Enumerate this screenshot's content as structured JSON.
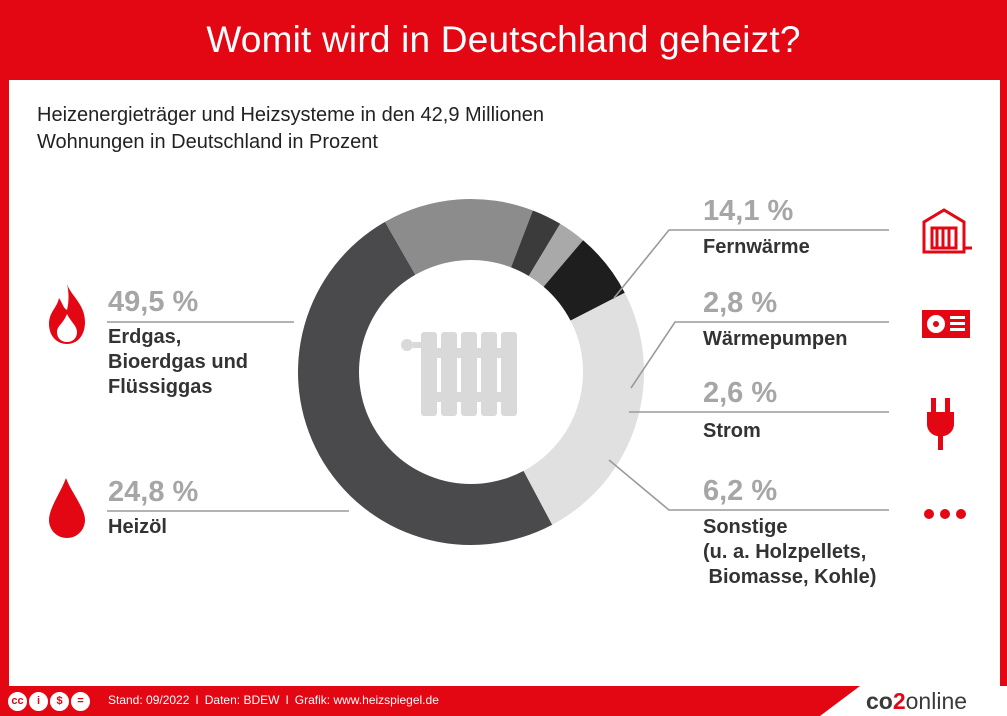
{
  "title": "Womit wird in Deutschland geheizt?",
  "subtitle": [
    "Heizenergieträger und Heizsysteme in den 42,9 Millionen",
    "Wohnungen in Deutschland in Prozent"
  ],
  "chart_data": {
    "type": "pie",
    "variant": "donut",
    "title": "Womit wird in Deutschland geheizt?",
    "subtitle": "Heizenergieträger und Heizsysteme in den 42,9 Millionen Wohnungen in Deutschland in Prozent",
    "unit": "%",
    "slices": [
      {
        "key": "erdgas",
        "value": 49.5,
        "label_value": "49,5 %",
        "lines": [
          "Erdgas,",
          "Bioerdgas und",
          "Flüssiggas"
        ],
        "color": "#4a4a4c",
        "icon": "flame-icon"
      },
      {
        "key": "fernwaerme",
        "value": 14.1,
        "label_value": "14,1 %",
        "lines": [
          "Fernwärme"
        ],
        "color": "#8c8c8c",
        "icon": "district-heating-icon"
      },
      {
        "key": "waermepumpen",
        "value": 2.8,
        "label_value": "2,8 %",
        "lines": [
          "Wärmepumpen"
        ],
        "color": "#3b3b3b",
        "icon": "heat-pump-icon"
      },
      {
        "key": "strom",
        "value": 2.6,
        "label_value": "2,6 %",
        "lines": [
          "Strom"
        ],
        "color": "#a9a9a9",
        "icon": "plug-icon"
      },
      {
        "key": "sonstige",
        "value": 6.2,
        "label_value": "6,2 %",
        "lines": [
          "Sonstige",
          "(u. a. Holzpellets,",
          " Biomasse, Kohle)"
        ],
        "color": "#1e1e1e",
        "icon": "more-dots-icon"
      },
      {
        "key": "heizoel",
        "value": 24.8,
        "label_value": "24,8 %",
        "lines": [
          "Heizöl"
        ],
        "color": "#e0e0e0",
        "icon": "oil-drop-icon"
      }
    ],
    "center_icon": "radiator-icon"
  },
  "footer": {
    "stand": "Stand: 09/2022",
    "separator": "I",
    "daten": "Daten: BDEW",
    "grafik": "Grafik: www.heizspiegel.de",
    "license_icons": [
      "cc",
      "i",
      "$",
      "="
    ],
    "brand_co": "co",
    "brand_2": "2",
    "brand_online": "online"
  },
  "colors": {
    "brand_red": "#e30613",
    "pct_gray": "#a6a6a6",
    "text_dark": "#333333"
  }
}
